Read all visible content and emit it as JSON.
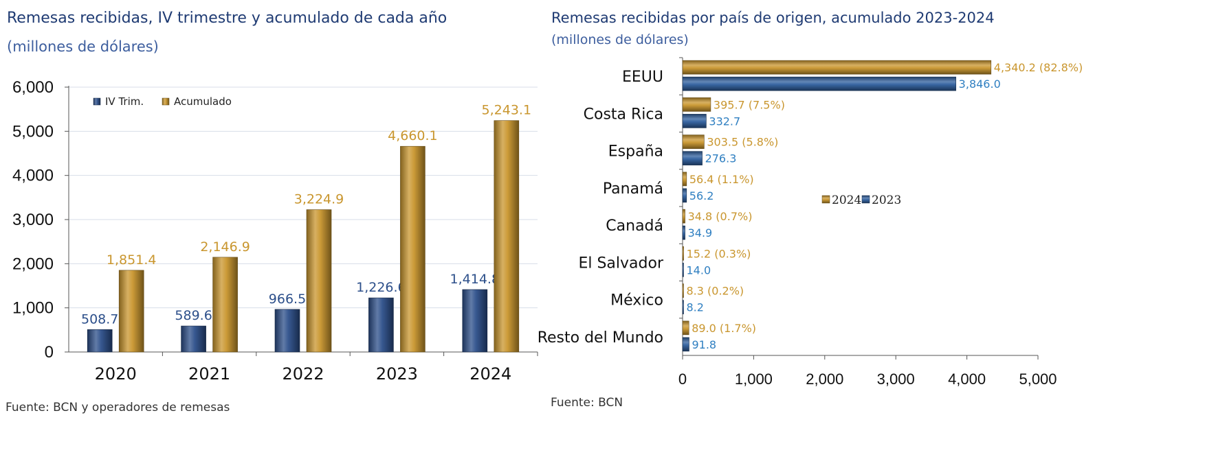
{
  "chart_data": [
    {
      "type": "bar",
      "title": "Remesas recibidas, IV trimestre y acumulado de cada año",
      "subtitle": "(millones de dólares)",
      "source": "Fuente: BCN y operadores de remesas",
      "categories": [
        "2020",
        "2021",
        "2022",
        "2023",
        "2024"
      ],
      "series": [
        {
          "name": "IV Trim.",
          "values": [
            508.7,
            589.6,
            966.5,
            1226.6,
            1414.8
          ],
          "labels": [
            "508.7",
            "589.6",
            "966.5",
            "1,226.6",
            "1,414.8"
          ],
          "color": "#2c4f8a"
        },
        {
          "name": "Acumulado",
          "values": [
            1851.4,
            2146.9,
            3224.9,
            4660.1,
            5243.1
          ],
          "labels": [
            "1,851.4",
            "2,146.9",
            "3,224.9",
            "4,660.1",
            "5,243.1"
          ],
          "color": "#c9962e"
        }
      ],
      "yticks": [
        "0",
        "1,000",
        "2,000",
        "3,000",
        "4,000",
        "5,000",
        "6,000"
      ],
      "ylim": [
        0,
        6000
      ],
      "grid": true,
      "legend": "top-left"
    },
    {
      "type": "bar",
      "orientation": "horizontal",
      "title": "Remesas recibidas por país de origen, acumulado 2023-2024",
      "subtitle": "(millones de dólares)",
      "source": "Fuente: BCN",
      "categories": [
        "EEUU",
        "Costa Rica",
        "España",
        "Panamá",
        "Canadá",
        "El Salvador",
        "México",
        "Resto del Mundo"
      ],
      "series": [
        {
          "name": "2024",
          "values": [
            4340.2,
            395.7,
            303.5,
            56.4,
            34.8,
            15.2,
            8.3,
            89.0
          ],
          "labels": [
            "4,340.2  (82.8%)",
            "395.7  (7.5%)",
            "303.5  (5.8%)",
            "56.4  (1.1%)",
            "34.8 (0.7%)",
            "15.2 (0.3%)",
            "8.3 (0.2%)",
            "89.0 (1.7%)"
          ],
          "color": "#c9962e"
        },
        {
          "name": "2023",
          "values": [
            3846.0,
            332.7,
            276.3,
            56.2,
            34.9,
            14.0,
            8.2,
            91.8
          ],
          "labels": [
            "3,846.0",
            "332.7",
            "276.3",
            "56.2",
            "34.9",
            "14.0",
            "8.2",
            "91.8"
          ],
          "color": "#2f5f9e"
        }
      ],
      "xticks": [
        "0",
        "1,000",
        "2,000",
        "3,000",
        "4,000",
        "5,000"
      ],
      "xlim": [
        0,
        5000
      ],
      "grid": false,
      "legend": "center-right"
    }
  ]
}
